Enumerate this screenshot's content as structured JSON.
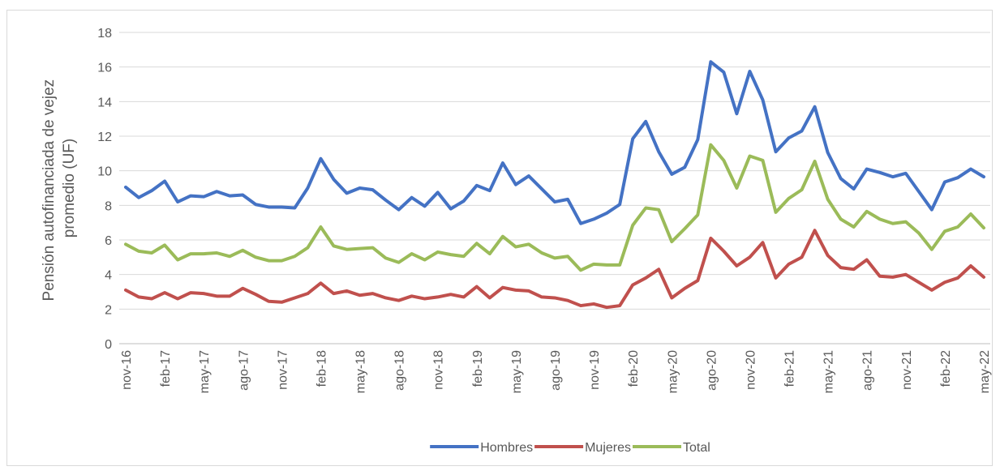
{
  "chart_data": {
    "type": "line",
    "ylabel": [
      "Pensión autofinanciada de vejez",
      "promedio (UF)"
    ],
    "categories": [
      "nov-16",
      null,
      null,
      "feb-17",
      null,
      null,
      "may-17",
      null,
      null,
      "ago-17",
      null,
      null,
      "nov-17",
      null,
      null,
      "feb-18",
      null,
      null,
      "may-18",
      null,
      null,
      "ago-18",
      null,
      null,
      "nov-18",
      null,
      null,
      "feb-19",
      null,
      null,
      "may-19",
      null,
      null,
      "ago-19",
      null,
      null,
      "nov-19",
      null,
      null,
      "feb-20",
      null,
      null,
      "may-20",
      null,
      null,
      "ago-20",
      null,
      null,
      "nov-20",
      null,
      null,
      "feb-21",
      null,
      null,
      "may-21",
      null,
      null,
      "ago-21",
      null,
      null,
      "nov-21",
      null,
      null,
      "feb-22",
      null,
      null,
      "may-22"
    ],
    "series": [
      {
        "name": "Hombres",
        "color": "#4472c4",
        "values": [
          9.05,
          8.45,
          8.85,
          9.4,
          8.2,
          8.55,
          8.5,
          8.8,
          8.55,
          8.6,
          8.05,
          7.9,
          7.9,
          7.85,
          9.0,
          10.7,
          9.5,
          8.7,
          9.0,
          8.9,
          8.3,
          7.75,
          8.45,
          7.95,
          8.75,
          7.8,
          8.25,
          9.15,
          8.85,
          10.45,
          9.2,
          9.7,
          8.95,
          8.2,
          8.35,
          6.95,
          7.2,
          7.55,
          8.05,
          11.85,
          12.85,
          11.1,
          9.8,
          10.2,
          11.8,
          16.3,
          15.7,
          13.3,
          15.75,
          14.1,
          11.1,
          11.9,
          12.3,
          13.7,
          11.05,
          9.55,
          8.95,
          10.1,
          9.9,
          9.65,
          9.85,
          8.8,
          7.75,
          9.35,
          9.6,
          10.1,
          9.65
        ]
      },
      {
        "name": "Mujeres",
        "color": "#c0504d",
        "values": [
          3.1,
          2.7,
          2.6,
          2.95,
          2.6,
          2.95,
          2.9,
          2.75,
          2.75,
          3.2,
          2.85,
          2.45,
          2.4,
          2.65,
          2.9,
          3.5,
          2.9,
          3.05,
          2.8,
          2.9,
          2.65,
          2.5,
          2.75,
          2.6,
          2.7,
          2.85,
          2.7,
          3.3,
          2.65,
          3.25,
          3.1,
          3.05,
          2.7,
          2.65,
          2.5,
          2.2,
          2.3,
          2.1,
          2.2,
          3.4,
          3.8,
          4.3,
          2.65,
          3.2,
          3.65,
          6.1,
          5.35,
          4.5,
          5.0,
          5.85,
          3.8,
          4.6,
          5.0,
          6.55,
          5.1,
          4.4,
          4.3,
          4.85,
          3.9,
          3.85,
          4.0,
          3.55,
          3.1,
          3.55,
          3.8,
          4.5,
          3.85
        ]
      },
      {
        "name": "Total",
        "color": "#9bbb59",
        "values": [
          5.75,
          5.35,
          5.25,
          5.7,
          4.85,
          5.2,
          5.2,
          5.25,
          5.05,
          5.4,
          5.0,
          4.8,
          4.8,
          5.05,
          5.55,
          6.75,
          5.65,
          5.45,
          5.5,
          5.55,
          4.95,
          4.7,
          5.2,
          4.85,
          5.3,
          5.15,
          5.05,
          5.8,
          5.2,
          6.2,
          5.6,
          5.75,
          5.25,
          4.95,
          5.05,
          4.25,
          4.6,
          4.55,
          4.55,
          6.85,
          7.85,
          7.75,
          5.9,
          6.65,
          7.45,
          11.5,
          10.6,
          9.0,
          10.85,
          10.6,
          7.6,
          8.4,
          8.9,
          10.55,
          8.35,
          7.2,
          6.75,
          7.65,
          7.2,
          6.95,
          7.05,
          6.4,
          5.45,
          6.5,
          6.75,
          7.5,
          6.7
        ]
      }
    ],
    "ylim": [
      0,
      18
    ],
    "yticks": [
      0,
      2,
      4,
      6,
      8,
      10,
      12,
      14,
      16,
      18
    ],
    "grid": true,
    "legend": "bottom"
  }
}
